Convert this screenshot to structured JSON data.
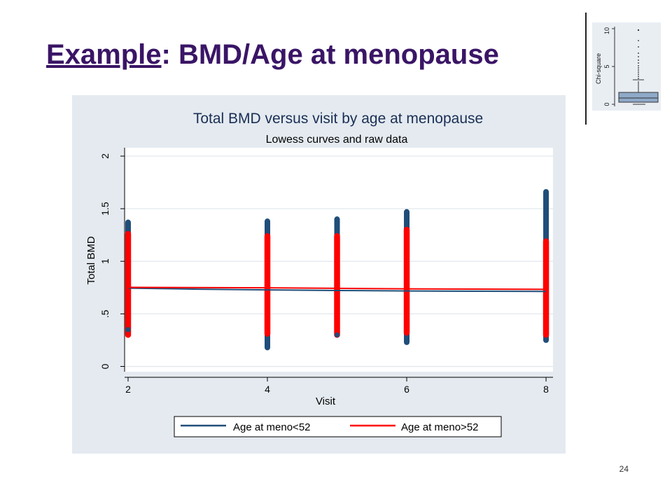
{
  "slide": {
    "title_prefix": "Example",
    "title_rest": ": BMD/Age at menopause",
    "page_number": "24"
  },
  "thumbnail": {
    "ylabel": "Chi-square",
    "ticks": [
      "0",
      "5",
      "10"
    ]
  },
  "colors": {
    "slide_title": "#3a1566",
    "panel_bg": "#e4eaf0",
    "series_meno_lt52": "#1f4e79",
    "series_meno_gt52": "#ff0000",
    "thumb_box_fill": "#8fa9c9"
  },
  "chart_data": {
    "type": "scatter",
    "title": "Total BMD versus visit by age at menopause",
    "subtitle": "Lowess curves and raw data",
    "xlabel": "Visit",
    "ylabel": "Total BMD",
    "xlim": [
      1.95,
      8.1
    ],
    "ylim": [
      -0.05,
      2.08
    ],
    "x_ticks": [
      2,
      4,
      6,
      8
    ],
    "x_tick_labels": [
      "2",
      "4",
      "6",
      "8"
    ],
    "y_ticks": [
      0,
      0.5,
      1,
      1.5,
      2
    ],
    "y_tick_labels": [
      "0",
      ".5",
      "1",
      "1.5",
      "2"
    ],
    "grid": true,
    "legend_position": "bottom",
    "series": [
      {
        "name": "Age at  meno<52",
        "color": "#1f4e79",
        "raw_ranges": [
          {
            "x": 2,
            "min": 0.35,
            "max": 1.37
          },
          {
            "x": 4,
            "min": 0.18,
            "max": 1.38
          },
          {
            "x": 5,
            "min": 0.3,
            "max": 1.4
          },
          {
            "x": 6,
            "min": 0.23,
            "max": 1.47
          },
          {
            "x": 8,
            "min": 0.25,
            "max": 1.66
          }
        ],
        "lowess": [
          {
            "x": 2,
            "y": 0.745
          },
          {
            "x": 3,
            "y": 0.735
          },
          {
            "x": 4,
            "y": 0.728
          },
          {
            "x": 5,
            "y": 0.722
          },
          {
            "x": 6,
            "y": 0.718
          },
          {
            "x": 8,
            "y": 0.713
          }
        ]
      },
      {
        "name": "Age at meno>52",
        "color": "#ff0000",
        "raw_ranges": [
          {
            "x": 2,
            "min": 0.3,
            "max": 1.26
          },
          {
            "x": 4,
            "min": 0.31,
            "max": 1.24
          },
          {
            "x": 5,
            "min": 0.3,
            "max": 1.24
          },
          {
            "x": 6,
            "min": 0.32,
            "max": 1.3
          },
          {
            "x": 8,
            "min": 0.3,
            "max": 1.19
          }
        ],
        "lowess": [
          {
            "x": 2,
            "y": 0.752
          },
          {
            "x": 4,
            "y": 0.748
          },
          {
            "x": 5,
            "y": 0.743
          },
          {
            "x": 6,
            "y": 0.738
          },
          {
            "x": 8,
            "y": 0.733
          }
        ]
      }
    ]
  }
}
